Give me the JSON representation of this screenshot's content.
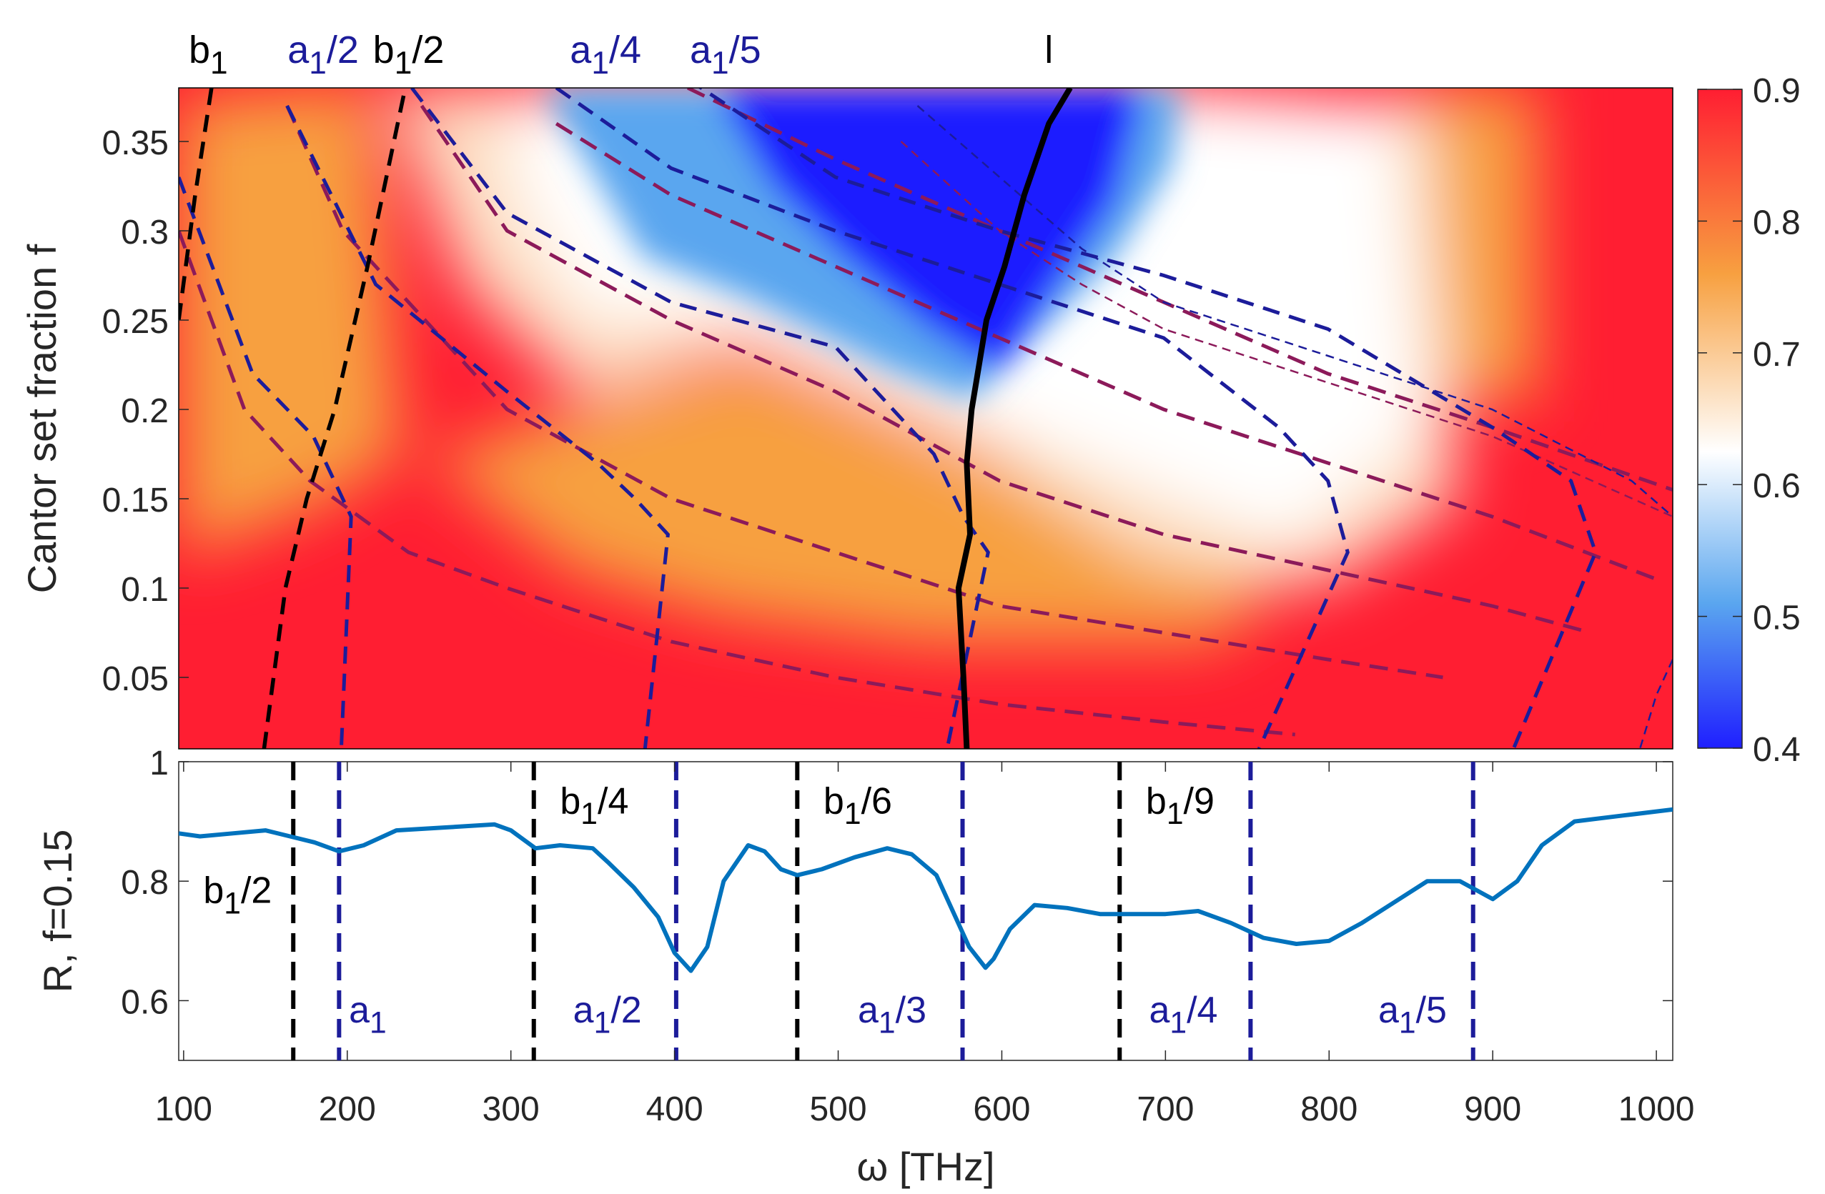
{
  "chart_data": [
    {
      "type": "heatmap",
      "xlabel": "",
      "ylabel": "Cantor set fraction f",
      "xlim": [
        100,
        1010
      ],
      "ylim": [
        0.01,
        0.38
      ],
      "yticks": [
        0.05,
        0.1,
        0.15,
        0.2,
        0.25,
        0.3,
        0.35
      ],
      "ytick_labels": [
        "0.05",
        "0.1",
        "0.15",
        "0.2",
        "0.25",
        "0.3",
        "0.35"
      ],
      "colorbar": {
        "range": [
          0.4,
          0.9
        ],
        "ticks": [
          "0.4",
          "0.5",
          "0.6",
          "0.7",
          "0.8",
          "0.9"
        ],
        "colormap": [
          "#1f1fff",
          "#5aa6ef",
          "#ffffff",
          "#f7a040",
          "#ff1e32"
        ]
      },
      "top_labels": [
        {
          "text": "b",
          "sub": "1",
          "tail": "",
          "x": 118,
          "color": "#000000"
        },
        {
          "text": "a",
          "sub": "1",
          "tail": "/2",
          "x": 188,
          "color": "#1c1c9a"
        },
        {
          "text": "b",
          "sub": "1",
          "tail": "/2",
          "x": 240,
          "color": "#000000"
        },
        {
          "text": "a",
          "sub": "1",
          "tail": "/4",
          "x": 360,
          "color": "#1c1c9a"
        },
        {
          "text": "a",
          "sub": "1",
          "tail": "/5",
          "x": 433,
          "color": "#1c1c9a"
        },
        {
          "text": "l",
          "sub": "",
          "tail": "",
          "x": 630,
          "color": "#000000"
        }
      ],
      "l_curve": {
        "color": "#000000",
        "points": [
          [
            580,
            0.01
          ],
          [
            578,
            0.05
          ],
          [
            575,
            0.1
          ],
          [
            582,
            0.13
          ],
          [
            580,
            0.17
          ],
          [
            583,
            0.2
          ],
          [
            592,
            0.25
          ],
          [
            603,
            0.28
          ],
          [
            615,
            0.32
          ],
          [
            630,
            0.36
          ],
          [
            643,
            0.38
          ]
        ]
      },
      "b_curves": [
        {
          "color": "#000000",
          "points": [
            [
              100,
              0.25
            ],
            [
              110,
              0.32
            ],
            [
              120,
              0.38
            ]
          ]
        },
        {
          "color": "#000000",
          "points": [
            [
              152,
              0.01
            ],
            [
              165,
              0.1
            ],
            [
              178,
              0.15
            ],
            [
              195,
              0.2
            ],
            [
              215,
              0.28
            ],
            [
              238,
              0.38
            ]
          ]
        }
      ],
      "a_curves": [
        {
          "color": "#1c1c9a",
          "points": [
            [
              100,
              0.33
            ],
            [
              145,
              0.22
            ],
            [
              182,
              0.185
            ],
            [
              205,
              0.14
            ],
            [
              199,
              0.01
            ]
          ]
        },
        {
          "color": "#1c1c9a",
          "points": [
            [
              166,
              0.37
            ],
            [
              220,
              0.27
            ],
            [
              300,
              0.21
            ],
            [
              355,
              0.17
            ],
            [
              378,
              0.15
            ],
            [
              398,
              0.13
            ],
            [
              384,
              0.01
            ]
          ]
        },
        {
          "color": "#1c1c9a",
          "points": [
            [
              242,
              0.38
            ],
            [
              300,
              0.31
            ],
            [
              400,
              0.26
            ],
            [
              500,
              0.235
            ],
            [
              560,
              0.175
            ],
            [
              578,
              0.14
            ],
            [
              593,
              0.12
            ],
            [
              568,
              0.01
            ]
          ]
        },
        {
          "color": "#1c1c9a",
          "points": [
            [
              330,
              0.38
            ],
            [
              400,
              0.335
            ],
            [
              500,
              0.3
            ],
            [
              600,
              0.27
            ],
            [
              700,
              0.24
            ],
            [
              770,
              0.19
            ],
            [
              800,
              0.16
            ],
            [
              812,
              0.12
            ],
            [
              758,
              0.01
            ]
          ]
        },
        {
          "color": "#1c1c9a",
          "points": [
            [
              410,
              0.385
            ],
            [
              500,
              0.33
            ],
            [
              600,
              0.3
            ],
            [
              700,
              0.275
            ],
            [
              800,
              0.245
            ],
            [
              900,
              0.19
            ],
            [
              948,
              0.16
            ],
            [
              963,
              0.12
            ],
            [
              913,
              0.01
            ]
          ]
        }
      ],
      "purple_curves": [
        {
          "color": "#8c1a5a",
          "points": [
            [
              100,
              0.3
            ],
            [
              140,
              0.2
            ],
            [
              180,
              0.16
            ],
            [
              240,
              0.12
            ],
            [
              300,
              0.1
            ],
            [
              400,
              0.07
            ],
            [
              500,
              0.05
            ],
            [
              600,
              0.035
            ],
            [
              700,
              0.025
            ],
            [
              780,
              0.018
            ]
          ]
        },
        {
          "color": "#8c1a5a",
          "points": [
            [
              166,
              0.37
            ],
            [
              200,
              0.3
            ],
            [
              260,
              0.24
            ],
            [
              300,
              0.2
            ],
            [
              400,
              0.15
            ],
            [
              500,
              0.12
            ],
            [
              600,
              0.09
            ],
            [
              700,
              0.075
            ],
            [
              800,
              0.06
            ],
            [
              870,
              0.05
            ]
          ]
        },
        {
          "color": "#8c1a5a",
          "points": [
            [
              248,
              0.37
            ],
            [
              300,
              0.3
            ],
            [
              400,
              0.25
            ],
            [
              500,
              0.21
            ],
            [
              600,
              0.16
            ],
            [
              700,
              0.13
            ],
            [
              800,
              0.11
            ],
            [
              900,
              0.09
            ],
            [
              960,
              0.075
            ]
          ]
        },
        {
          "color": "#8c1a5a",
          "points": [
            [
              330,
              0.36
            ],
            [
              400,
              0.32
            ],
            [
              500,
              0.28
            ],
            [
              600,
              0.24
            ],
            [
              700,
              0.2
            ],
            [
              800,
              0.17
            ],
            [
              900,
              0.14
            ],
            [
              1000,
              0.105
            ]
          ]
        },
        {
          "color": "#8c1a5a",
          "points": [
            [
              410,
              0.38
            ],
            [
              500,
              0.34
            ],
            [
              600,
              0.3
            ],
            [
              700,
              0.26
            ],
            [
              800,
              0.22
            ],
            [
              900,
              0.19
            ],
            [
              1010,
              0.155
            ]
          ]
        }
      ],
      "thin_curves": [
        {
          "color": "#1c1c9a",
          "points": [
            [
              550,
              0.37
            ],
            [
              600,
              0.33
            ],
            [
              650,
              0.29
            ],
            [
              700,
              0.26
            ],
            [
              800,
              0.23
            ],
            [
              900,
              0.2
            ],
            [
              985,
              0.16
            ],
            [
              1010,
              0.14
            ]
          ]
        },
        {
          "color": "#8c1a5a",
          "points": [
            [
              540,
              0.35
            ],
            [
              600,
              0.3
            ],
            [
              650,
              0.27
            ],
            [
              700,
              0.245
            ],
            [
              800,
              0.215
            ],
            [
              900,
              0.185
            ],
            [
              1010,
              0.14
            ]
          ]
        },
        {
          "color": "#1c1c9a",
          "points": [
            [
              1010,
              0.06
            ],
            [
              1000,
              0.04
            ],
            [
              990,
              0.01
            ]
          ]
        }
      ]
    },
    {
      "type": "line",
      "xlabel": "ω [THz]",
      "ylabel": "R, f=0.15",
      "xlim": [
        97,
        1010
      ],
      "ylim": [
        0.5,
        1.0
      ],
      "xticks": [
        100,
        200,
        300,
        400,
        500,
        600,
        700,
        800,
        900,
        1000
      ],
      "xtick_labels": [
        "100",
        "200",
        "300",
        "400",
        "500",
        "600",
        "700",
        "800",
        "900",
        "1000"
      ],
      "yticks": [
        0.6,
        0.8,
        1.0
      ],
      "ytick_labels": [
        "0.6",
        "0.8",
        "1"
      ],
      "series": [
        {
          "color": "#0072bd",
          "x": [
            97,
            110,
            130,
            150,
            165,
            180,
            195,
            210,
            230,
            260,
            290,
            300,
            315,
            330,
            350,
            360,
            375,
            390,
            400,
            410,
            420,
            430,
            445,
            455,
            465,
            475,
            490,
            510,
            530,
            545,
            560,
            570,
            580,
            590,
            595,
            605,
            620,
            640,
            660,
            680,
            700,
            720,
            740,
            760,
            780,
            800,
            820,
            840,
            860,
            880,
            890,
            900,
            915,
            930,
            950,
            980,
            1010
          ],
          "y": [
            0.88,
            0.875,
            0.88,
            0.885,
            0.875,
            0.865,
            0.85,
            0.86,
            0.885,
            0.89,
            0.895,
            0.885,
            0.855,
            0.86,
            0.855,
            0.83,
            0.79,
            0.74,
            0.68,
            0.65,
            0.69,
            0.8,
            0.86,
            0.85,
            0.82,
            0.81,
            0.82,
            0.84,
            0.855,
            0.845,
            0.81,
            0.75,
            0.69,
            0.655,
            0.67,
            0.72,
            0.76,
            0.755,
            0.745,
            0.745,
            0.745,
            0.75,
            0.73,
            0.705,
            0.695,
            0.7,
            0.73,
            0.765,
            0.8,
            0.8,
            0.785,
            0.77,
            0.8,
            0.86,
            0.9,
            0.91,
            0.92
          ]
        }
      ],
      "vlines": [
        {
          "x": 167,
          "color": "#000000"
        },
        {
          "x": 195,
          "color": "#1c1c9a"
        },
        {
          "x": 314,
          "color": "#000000"
        },
        {
          "x": 401,
          "color": "#1c1c9a"
        },
        {
          "x": 475,
          "color": "#000000"
        },
        {
          "x": 576,
          "color": "#1c1c9a"
        },
        {
          "x": 672,
          "color": "#000000"
        },
        {
          "x": 752,
          "color": "#1c1c9a"
        },
        {
          "x": 888,
          "color": "#1c1c9a"
        }
      ],
      "annotations": [
        {
          "text": "b",
          "sub": "1",
          "tail": "/2",
          "x": 112,
          "y": 0.785,
          "color": "#000000"
        },
        {
          "text": "a",
          "sub": "1",
          "tail": "",
          "x": 201,
          "y": 0.585,
          "color": "#1c1c9a"
        },
        {
          "text": "b",
          "sub": "1",
          "tail": "/4",
          "x": 330,
          "y": 0.935,
          "color": "#000000"
        },
        {
          "text": "a",
          "sub": "1",
          "tail": "/2",
          "x": 338,
          "y": 0.585,
          "color": "#1c1c9a"
        },
        {
          "text": "b",
          "sub": "1",
          "tail": "/6",
          "x": 491,
          "y": 0.935,
          "color": "#000000"
        },
        {
          "text": "a",
          "sub": "1",
          "tail": "/3",
          "x": 512,
          "y": 0.585,
          "color": "#1c1c9a"
        },
        {
          "text": "b",
          "sub": "1",
          "tail": "/9",
          "x": 688,
          "y": 0.935,
          "color": "#000000"
        },
        {
          "text": "a",
          "sub": "1",
          "tail": "/4",
          "x": 690,
          "y": 0.585,
          "color": "#1c1c9a"
        },
        {
          "text": "a",
          "sub": "1",
          "tail": "/5",
          "x": 830,
          "y": 0.585,
          "color": "#1c1c9a"
        }
      ]
    }
  ]
}
